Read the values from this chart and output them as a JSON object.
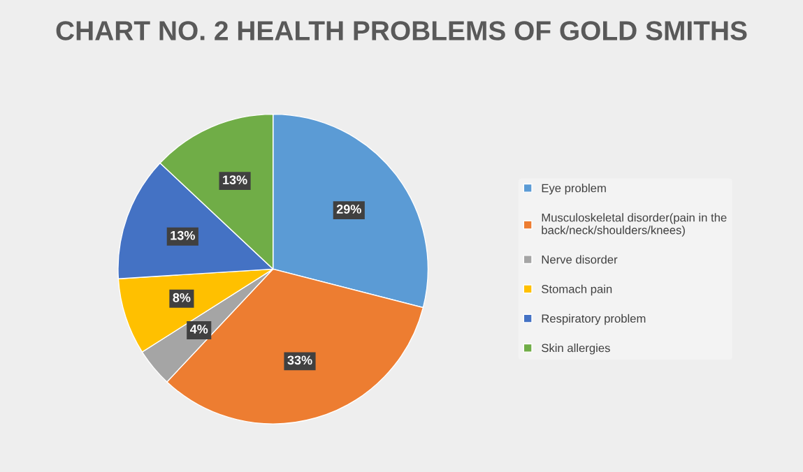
{
  "chart_data": {
    "type": "pie",
    "title": "CHART NO. 2 HEALTH PROBLEMS OF GOLD SMITHS",
    "categories": [
      "Eye problem",
      "Musculoskeletal disorder(pain in the back/neck/shoulders/knees)",
      "Nerve disorder",
      "Stomach pain",
      "Respiratory problem",
      "Skin allergies"
    ],
    "values": [
      29,
      33,
      4,
      8,
      13,
      13
    ],
    "colors": [
      "#5b9bd5",
      "#ed7d31",
      "#a5a5a5",
      "#ffc000",
      "#4472c4",
      "#70ad47"
    ],
    "value_labels": [
      "29%",
      "33%",
      "4%",
      "8%",
      "13%",
      "13%"
    ],
    "legend": "right"
  }
}
